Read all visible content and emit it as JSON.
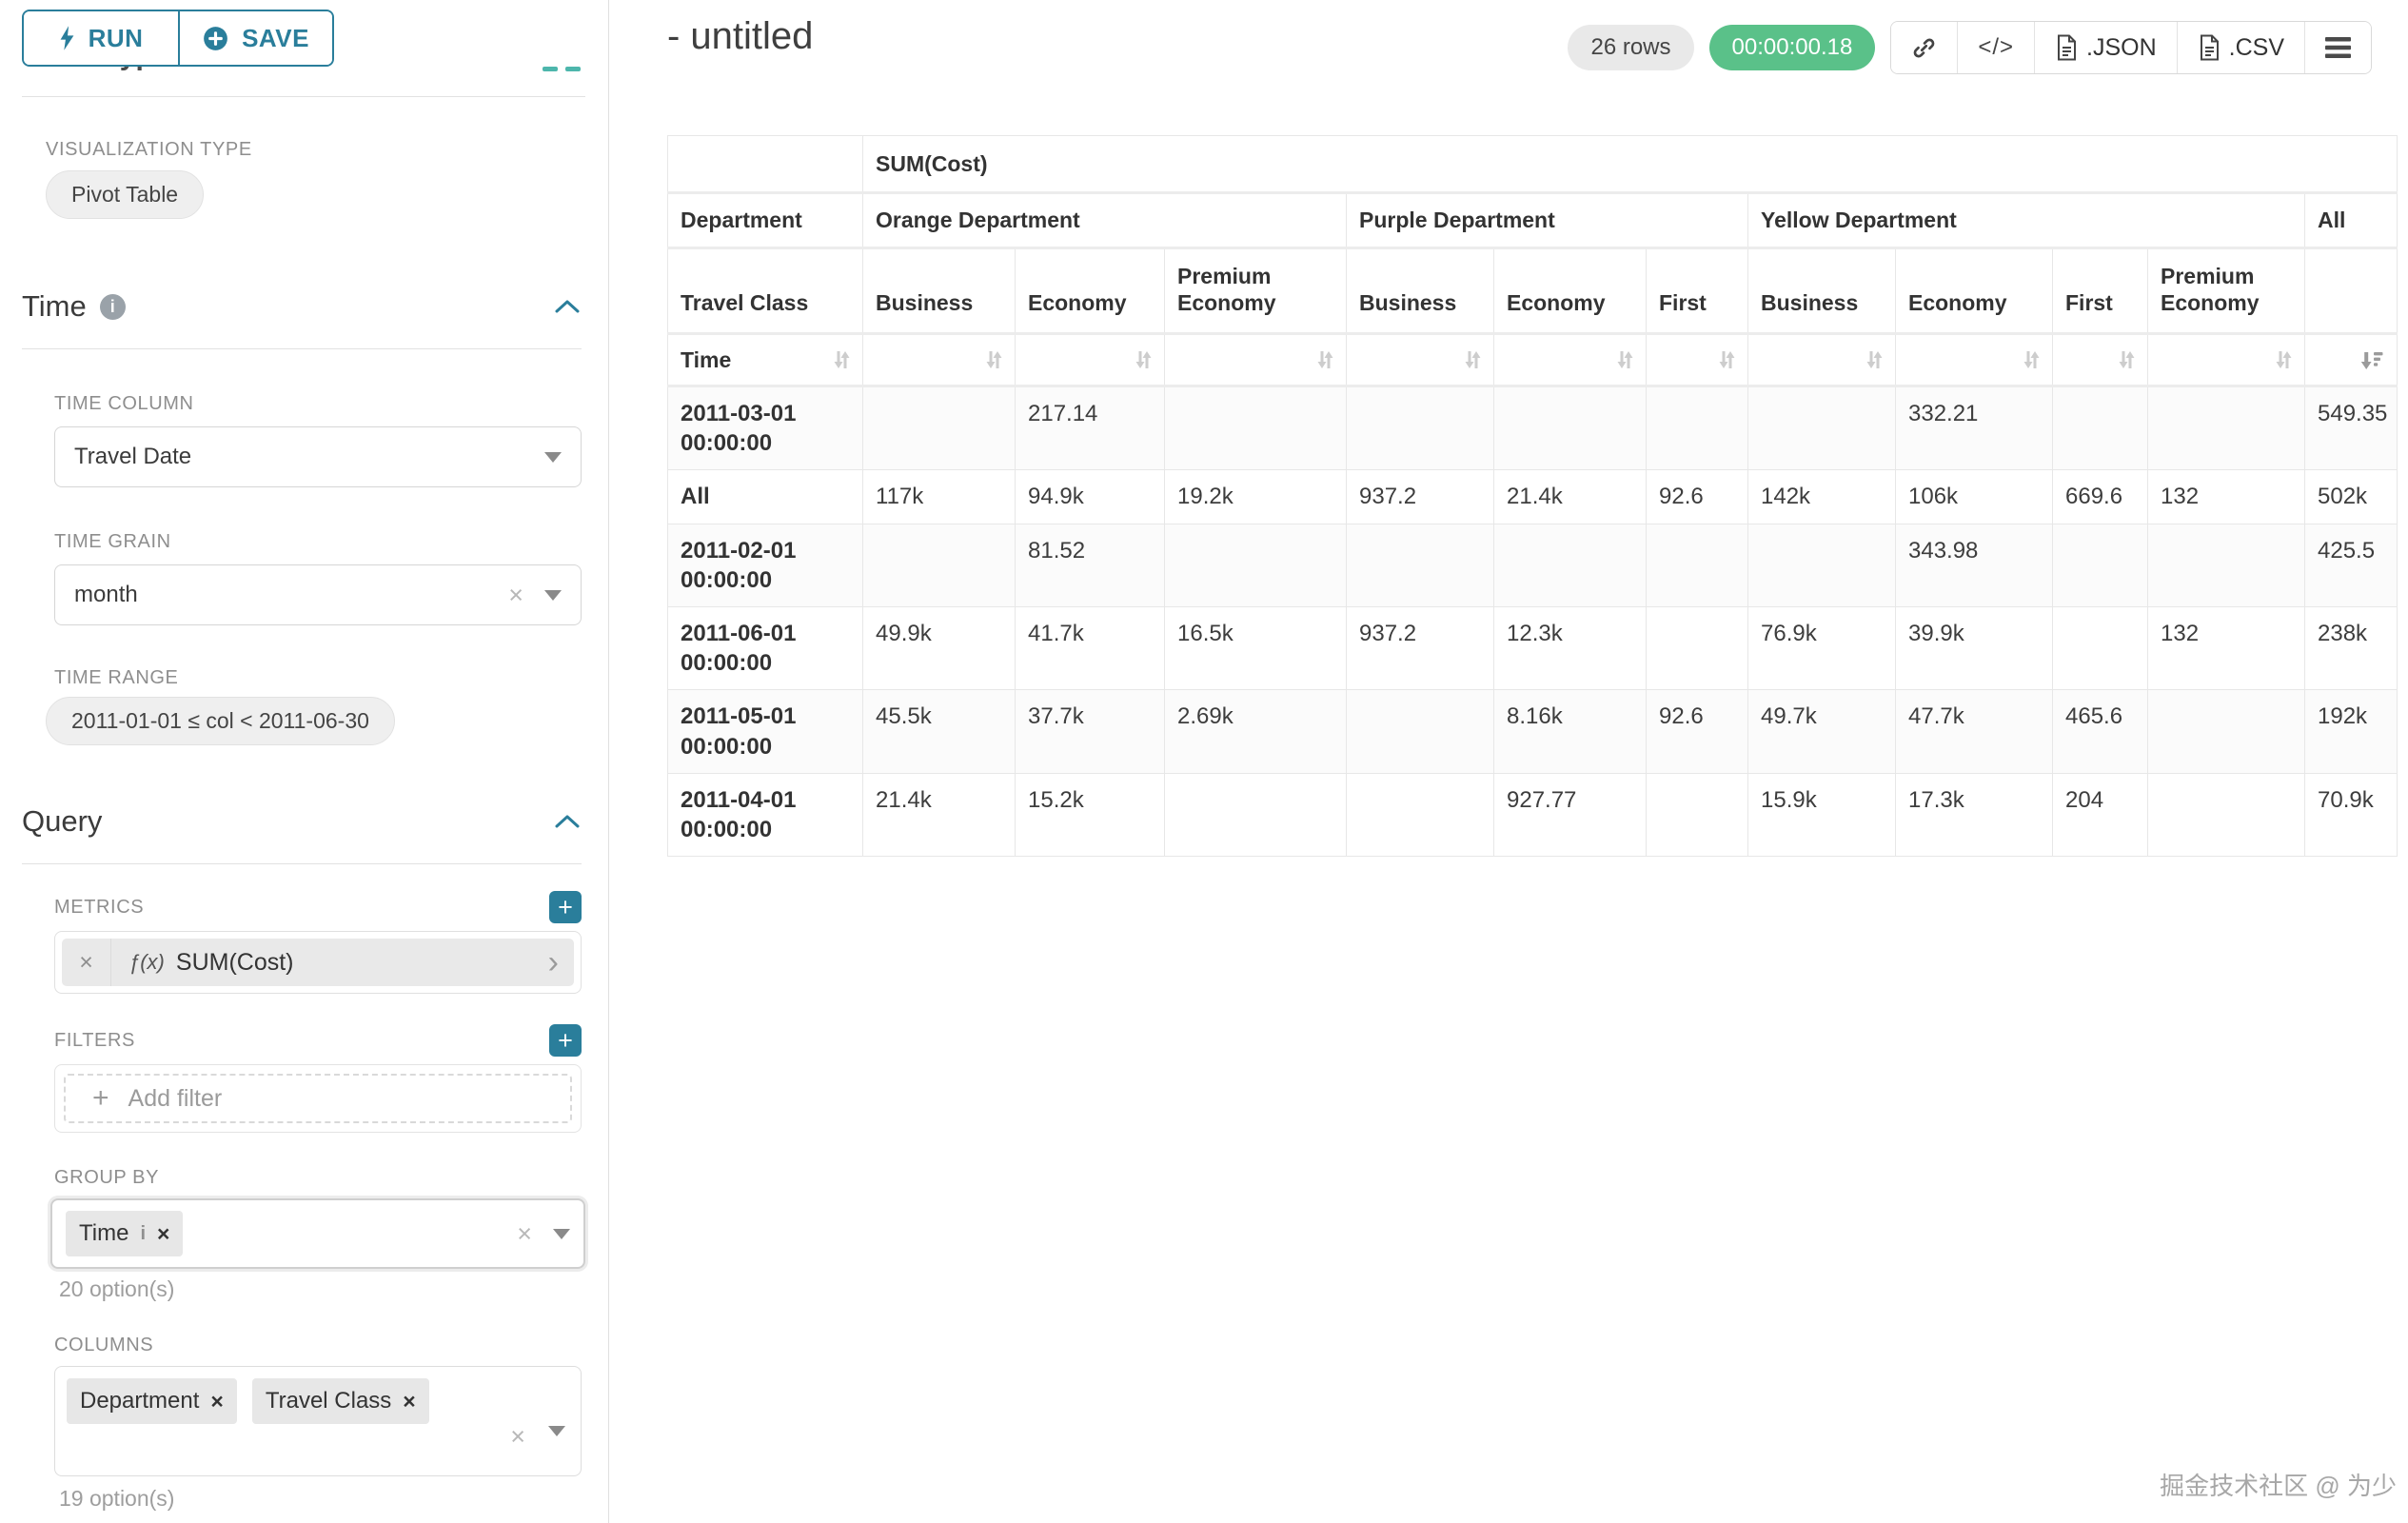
{
  "icons": {
    "info": "i",
    "plus": "+",
    "close": "×",
    "chevron_right": "›"
  },
  "sidebar": {
    "run_label": "RUN",
    "save_label": "SAVE",
    "chart_type_heading": "Chart Type",
    "viz": {
      "label": "VISUALIZATION TYPE",
      "value": "Pivot Table"
    },
    "time": {
      "title": "Time",
      "column_label": "TIME COLUMN",
      "column_value": "Travel Date",
      "grain_label": "TIME GRAIN",
      "grain_value": "month",
      "range_label": "TIME RANGE",
      "range_value": "2011-01-01 ≤ col < 2011-06-30"
    },
    "query": {
      "title": "Query",
      "metrics_label": "METRICS",
      "metric_fx": "ƒ(x)",
      "metric_value": "SUM(Cost)",
      "filters_label": "FILTERS",
      "add_filter_label": "Add filter",
      "group_by_label": "GROUP BY",
      "group_by_tag": "Time",
      "group_by_options": "20 option(s)",
      "columns_label": "COLUMNS",
      "columns_tags": [
        "Department",
        "Travel Class"
      ],
      "columns_options": "19 option(s)"
    }
  },
  "header": {
    "title": "- untitled",
    "rows_badge": "26 rows",
    "timer_badge": "00:00:00.18",
    "code_icon_label": "</>",
    "json_label": ".JSON",
    "csv_label": ".CSV"
  },
  "table": {
    "metric_header": "SUM(Cost)",
    "row_dim": "Department",
    "col_dim": "Travel Class",
    "time_label": "Time",
    "groups": [
      "Orange Department",
      "Purple Department",
      "Yellow Department",
      "All"
    ],
    "classes": [
      "Business",
      "Economy",
      "Premium Economy",
      "Business",
      "Economy",
      "First",
      "Business",
      "Economy",
      "First",
      "Premium Economy"
    ],
    "rows": [
      {
        "label": "2011-03-01 00:00:00",
        "cells": [
          "",
          "217.14",
          "",
          "",
          "",
          "",
          "",
          "332.21",
          "",
          "",
          "549.35"
        ]
      },
      {
        "label": "All",
        "cells": [
          "117k",
          "94.9k",
          "19.2k",
          "937.2",
          "21.4k",
          "92.6",
          "142k",
          "106k",
          "669.6",
          "132",
          "502k"
        ]
      },
      {
        "label": "2011-02-01 00:00:00",
        "cells": [
          "",
          "81.52",
          "",
          "",
          "",
          "",
          "",
          "343.98",
          "",
          "",
          "425.5"
        ]
      },
      {
        "label": "2011-06-01 00:00:00",
        "cells": [
          "49.9k",
          "41.7k",
          "16.5k",
          "937.2",
          "12.3k",
          "",
          "76.9k",
          "39.9k",
          "",
          "132",
          "238k"
        ]
      },
      {
        "label": "2011-05-01 00:00:00",
        "cells": [
          "45.5k",
          "37.7k",
          "2.69k",
          "",
          "8.16k",
          "92.6",
          "49.7k",
          "47.7k",
          "465.6",
          "",
          "192k"
        ]
      },
      {
        "label": "2011-04-01 00:00:00",
        "cells": [
          "21.4k",
          "15.2k",
          "",
          "",
          "927.77",
          "",
          "15.9k",
          "17.3k",
          "204",
          "",
          "70.9k"
        ]
      }
    ]
  },
  "watermark": "掘金技术社区 @ 为少"
}
